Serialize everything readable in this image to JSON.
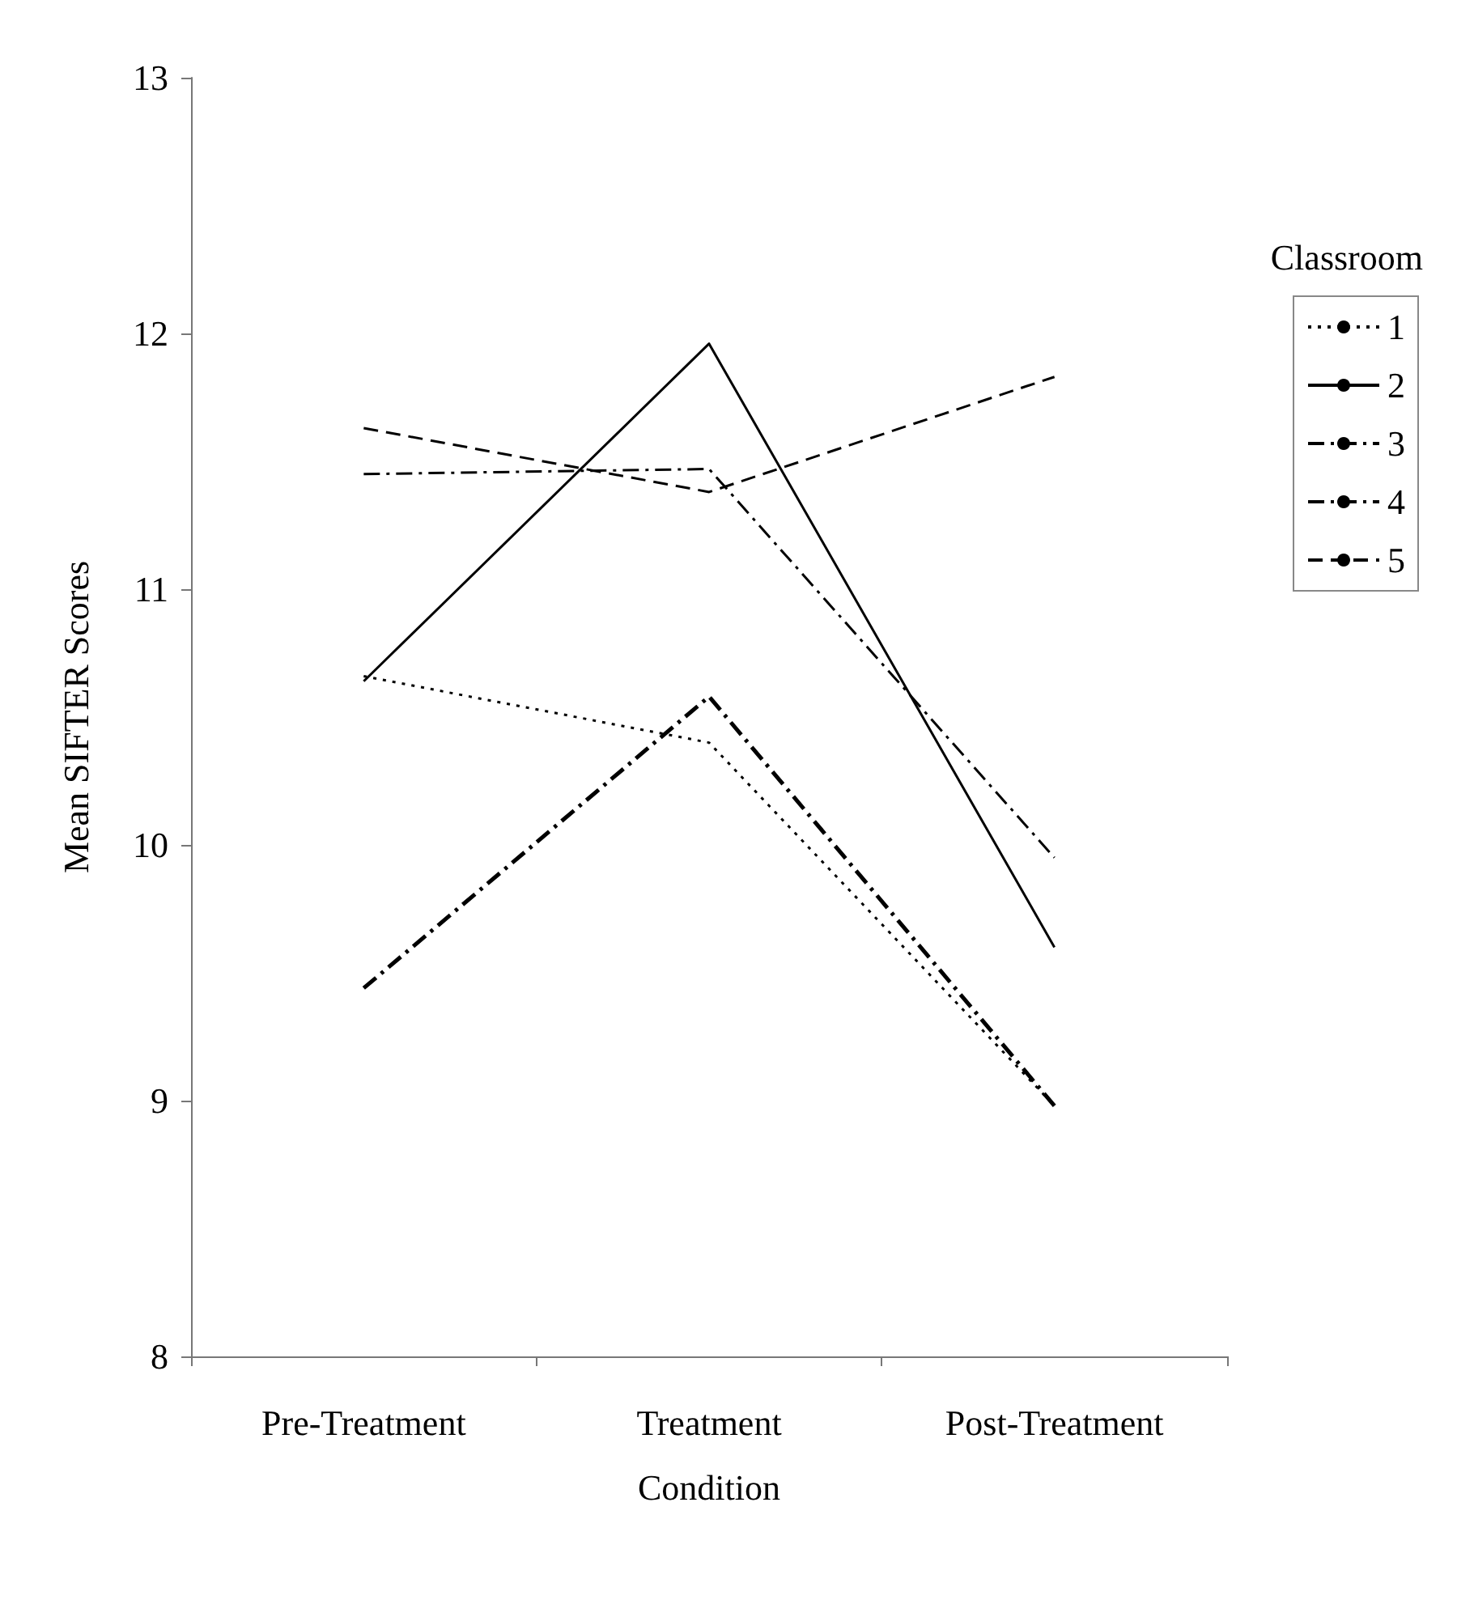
{
  "chart_data": {
    "type": "line",
    "ylabel": "Mean SIFTER Scores",
    "xlabel": "Condition",
    "legend_title": "Classroom",
    "legend": "top right",
    "categories": [
      "Pre-Treatment",
      "Treatment",
      "Post-Treatment"
    ],
    "ylim": [
      8,
      13
    ],
    "yticks": [
      8,
      9,
      10,
      11,
      12,
      13
    ],
    "grid": false,
    "marker": "none",
    "series": [
      {
        "name": "1",
        "color": "#000000",
        "line_style": "dotted",
        "values": [
          10.66,
          10.4,
          8.98
        ]
      },
      {
        "name": "2",
        "color": "#000000",
        "line_style": "solid",
        "values": [
          10.64,
          11.96,
          9.6
        ]
      },
      {
        "name": "3",
        "color": "#000000",
        "line_style": "dashdot",
        "values": [
          11.45,
          11.47,
          9.95
        ]
      },
      {
        "name": "4",
        "color": "#000000",
        "line_style": "dashdot",
        "values": [
          9.44,
          10.58,
          8.98
        ]
      },
      {
        "name": "5",
        "color": "#000000",
        "line_style": "dashed",
        "values": [
          11.63,
          11.38,
          11.83
        ]
      }
    ]
  }
}
